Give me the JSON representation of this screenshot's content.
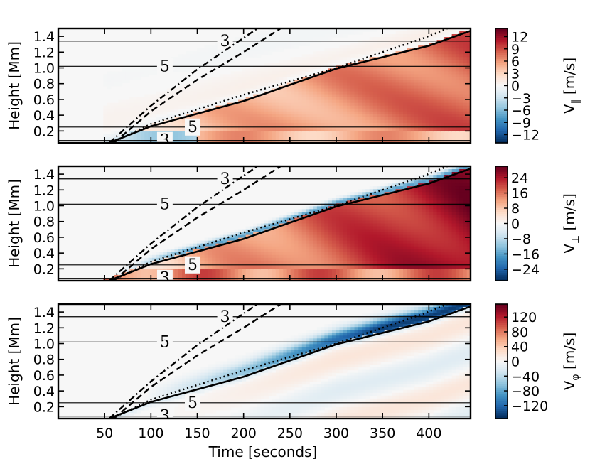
{
  "chart_data": {
    "type": "heatmap",
    "xlabel": "Time [seconds]",
    "xlim": [
      0,
      445
    ],
    "ylim": [
      0.05,
      1.5
    ],
    "x_ticks": [
      50,
      100,
      150,
      200,
      250,
      300,
      350,
      400
    ],
    "y_ticks": [
      0.2,
      0.4,
      0.6,
      0.8,
      1.0,
      1.2,
      1.4
    ],
    "contour_lines": [
      {
        "height": 0.08,
        "label": "3"
      },
      {
        "height": 0.25,
        "label": "5"
      },
      {
        "height": 1.02,
        "label": "5"
      },
      {
        "height": 1.34,
        "label": "3"
      }
    ],
    "trajectories": [
      {
        "style": "solid",
        "points": [
          [
            55,
            0.05
          ],
          [
            100,
            0.26
          ],
          [
            200,
            0.58
          ],
          [
            300,
            0.99
          ],
          [
            400,
            1.28
          ],
          [
            445,
            1.47
          ]
        ]
      },
      {
        "style": "dotted",
        "points": [
          [
            58,
            0.05
          ],
          [
            100,
            0.29
          ],
          [
            200,
            0.66
          ],
          [
            300,
            1.0
          ],
          [
            395,
            1.38
          ],
          [
            420,
            1.5
          ]
        ]
      },
      {
        "style": "dashed",
        "points": [
          [
            60,
            0.05
          ],
          [
            100,
            0.45
          ],
          [
            150,
            0.85
          ],
          [
            200,
            1.2
          ],
          [
            240,
            1.5
          ]
        ]
      },
      {
        "style": "dashdot",
        "points": [
          [
            55,
            0.05
          ],
          [
            100,
            0.52
          ],
          [
            150,
            0.98
          ],
          [
            200,
            1.38
          ],
          [
            215,
            1.5
          ]
        ]
      }
    ],
    "panels": [
      {
        "name": "parallel",
        "ylabel": "Height [Mm]",
        "colorbar_label": "V_∥ [m/s]",
        "colorbar_sym": "∥",
        "colorbar_range": [
          -14,
          14
        ],
        "colorbar_ticks": [
          "12",
          "9",
          "6",
          "3",
          "0",
          "−3",
          "−6",
          "−9",
          "−12"
        ],
        "colorbar_tick_values": [
          12,
          9,
          6,
          3,
          0,
          -3,
          -6,
          -9,
          -12
        ]
      },
      {
        "name": "perpendicular",
        "ylabel": "Height [Mm]",
        "colorbar_label": "V_⊥ [m/s]",
        "colorbar_sym": "⊥",
        "colorbar_range": [
          -30,
          30
        ],
        "colorbar_ticks": [
          "24",
          "16",
          "8",
          "0",
          "−8",
          "−16",
          "−24"
        ],
        "colorbar_tick_values": [
          24,
          16,
          8,
          0,
          -8,
          -16,
          -24
        ]
      },
      {
        "name": "phi",
        "ylabel": "Height [Mm]",
        "colorbar_label": "V_φ [m/s]",
        "colorbar_sym": "φ",
        "colorbar_range": [
          -155,
          155
        ],
        "colorbar_ticks": [
          "120",
          "80",
          "40",
          "0",
          "−40",
          "−80",
          "−120"
        ],
        "colorbar_tick_values": [
          120,
          80,
          40,
          0,
          -40,
          -80,
          -120
        ]
      }
    ]
  },
  "colors": {
    "cmap": [
      "#053061",
      "#2166ac",
      "#4393c3",
      "#92c5de",
      "#d1e5f0",
      "#f7f7f7",
      "#fddbc7",
      "#f4a582",
      "#d6604d",
      "#b2182b",
      "#67001f"
    ],
    "background": "#f7f7f7"
  }
}
